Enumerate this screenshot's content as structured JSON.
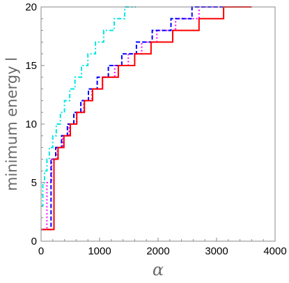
{
  "chart_data": {
    "type": "line",
    "title": "",
    "xlabel": "α",
    "ylabel": "minimum energy l",
    "xlim": [
      0,
      4000
    ],
    "ylim": [
      0,
      20
    ],
    "x_ticks": [
      "0",
      "1000",
      "2000",
      "3000",
      "4000"
    ],
    "y_ticks": [
      "0",
      "5",
      "10",
      "15",
      "20"
    ],
    "grid": false,
    "legend": "none",
    "step": "post",
    "series": [
      {
        "color": "#00e5e5",
        "dash": "dashdot",
        "steps": [
          [
            0,
            3
          ],
          [
            30,
            5
          ],
          [
            60,
            6
          ],
          [
            100,
            7
          ],
          [
            140,
            8
          ],
          [
            200,
            9
          ],
          [
            260,
            10
          ],
          [
            330,
            11
          ],
          [
            400,
            12
          ],
          [
            490,
            13
          ],
          [
            580,
            14
          ],
          [
            690,
            15
          ],
          [
            800,
            16
          ],
          [
            930,
            17
          ],
          [
            1070,
            18
          ],
          [
            1250,
            19
          ],
          [
            1430,
            20
          ],
          [
            1620,
            20
          ]
        ]
      },
      {
        "color": "#ff00ff",
        "dash": "dot",
        "steps": [
          [
            0,
            1
          ],
          [
            100,
            5
          ],
          [
            180,
            7
          ],
          [
            280,
            8
          ],
          [
            370,
            9
          ],
          [
            480,
            10
          ],
          [
            610,
            11
          ],
          [
            730,
            12
          ],
          [
            870,
            13
          ],
          [
            1050,
            14
          ],
          [
            1260,
            15
          ],
          [
            1490,
            16
          ],
          [
            1720,
            17
          ],
          [
            1980,
            18
          ],
          [
            2300,
            19
          ],
          [
            2700,
            20
          ],
          [
            3100,
            20
          ]
        ]
      },
      {
        "color": "#0000ff",
        "dash": "dash",
        "steps": [
          [
            0,
            1
          ],
          [
            170,
            7
          ],
          [
            250,
            8
          ],
          [
            350,
            9
          ],
          [
            450,
            10
          ],
          [
            560,
            11
          ],
          [
            680,
            12
          ],
          [
            810,
            13
          ],
          [
            960,
            14
          ],
          [
            1150,
            15
          ],
          [
            1380,
            16
          ],
          [
            1630,
            17
          ],
          [
            1900,
            18
          ],
          [
            2220,
            19
          ],
          [
            2580,
            20
          ],
          [
            3020,
            20
          ],
          [
            3430,
            20
          ]
        ]
      },
      {
        "color": "#ff0000",
        "dash": "solid",
        "steps": [
          [
            0,
            1
          ],
          [
            220,
            7
          ],
          [
            290,
            8
          ],
          [
            390,
            9
          ],
          [
            500,
            10
          ],
          [
            610,
            11
          ],
          [
            740,
            12
          ],
          [
            880,
            13
          ],
          [
            1050,
            14
          ],
          [
            1320,
            15
          ],
          [
            1600,
            16
          ],
          [
            1880,
            17
          ],
          [
            2250,
            18
          ],
          [
            2700,
            19
          ],
          [
            3120,
            20
          ],
          [
            3600,
            20
          ]
        ]
      }
    ]
  }
}
